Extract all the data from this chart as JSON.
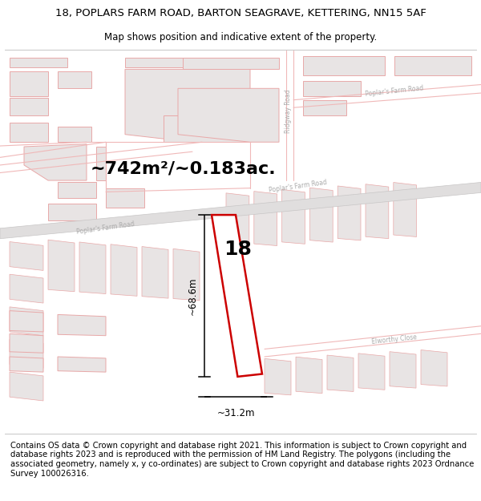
{
  "title_line1": "18, POPLARS FARM ROAD, BARTON SEAGRAVE, KETTERING, NN15 5AF",
  "title_line2": "Map shows position and indicative extent of the property.",
  "area_label": "~742m²/~0.183ac.",
  "number_label": "18",
  "width_label": "~31.2m",
  "height_label": "~68.6m",
  "footer_text": "Contains OS data © Crown copyright and database right 2021. This information is subject to Crown copyright and database rights 2023 and is reproduced with the permission of HM Land Registry. The polygons (including the associated geometry, namely x, y co-ordinates) are subject to Crown copyright and database rights 2023 Ordnance Survey 100026316.",
  "map_bg": "#f9f7f7",
  "road_pink": "#f0b8b8",
  "road_gray_fill": "#e0dede",
  "road_gray_edge": "#c8c6c6",
  "building_fill": "#e8e4e4",
  "building_edge": "#e8a8a8",
  "plot_edge": "#cc0000",
  "plot_fill": "#ffffff",
  "dim_color": "#000000",
  "title_fs": 9.5,
  "subtitle_fs": 8.5,
  "area_fs": 16,
  "num_fs": 18,
  "footer_fs": 7.2,
  "road_label_color": "#aaaaaa"
}
